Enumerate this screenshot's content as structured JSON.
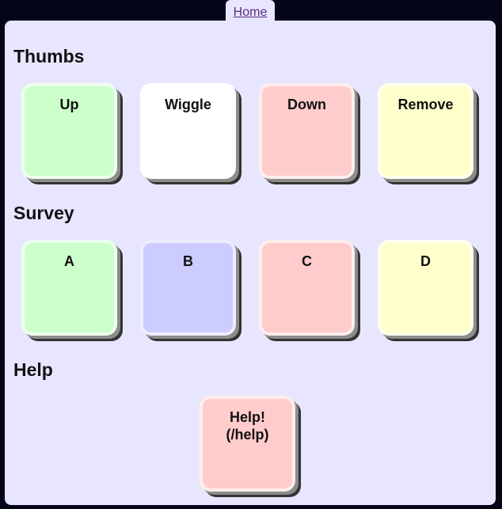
{
  "nav": {
    "home_label": "Home"
  },
  "sections": {
    "thumbs": {
      "title": "Thumbs",
      "buttons": [
        "Up",
        "Wiggle",
        "Down",
        "Remove"
      ]
    },
    "survey": {
      "title": "Survey",
      "buttons": [
        "A",
        "B",
        "C",
        "D"
      ]
    },
    "help": {
      "title": "Help",
      "buttons": [
        "Help!\n(/help)"
      ]
    }
  },
  "colors": {
    "page_background": "#050518",
    "panel_background": "#e8e6ff",
    "green": "#ccffcc",
    "white": "#ffffff",
    "red": "#ffcccc",
    "yellow": "#ffffcc",
    "blue": "#ccccff"
  }
}
